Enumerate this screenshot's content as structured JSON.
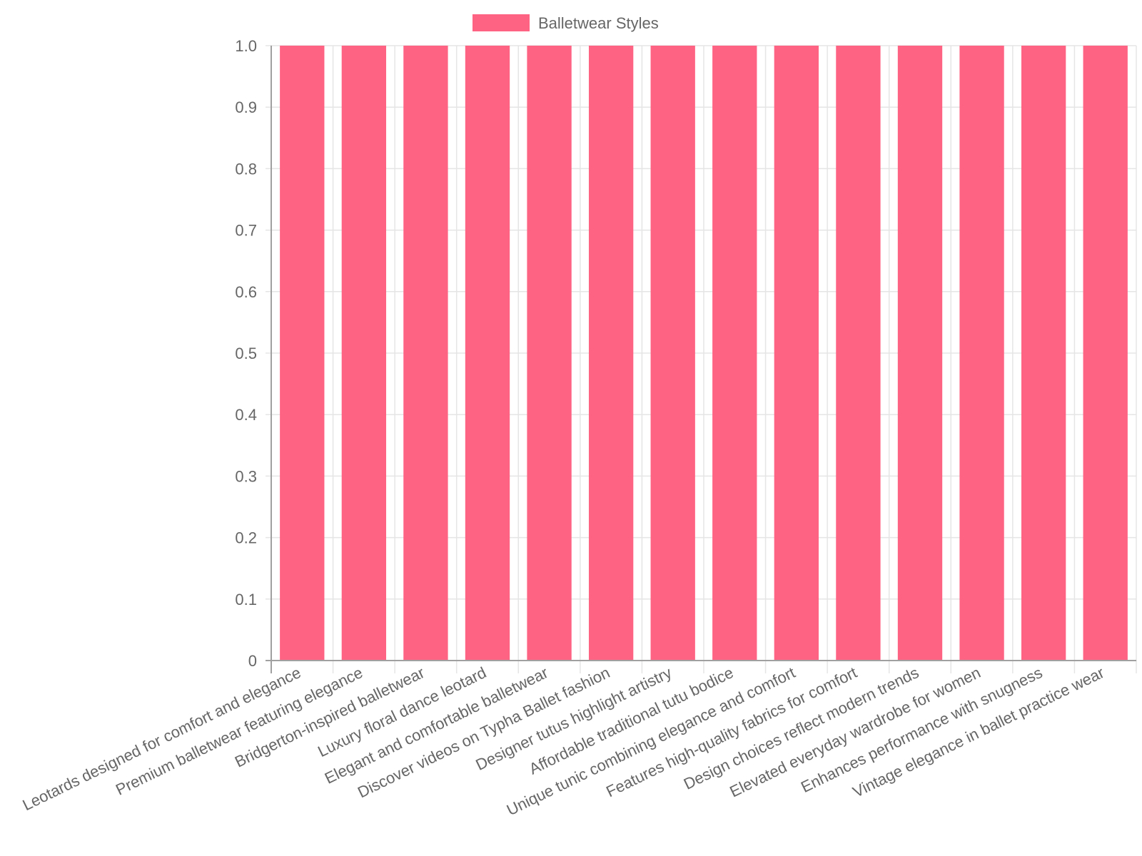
{
  "chart_data": {
    "type": "bar",
    "categories": [
      "Leotards designed for comfort and elegance",
      "Premium balletwear featuring elegance",
      "Bridgerton-inspired balletwear",
      "Luxury floral dance leotard",
      "Elegant and comfortable balletwear",
      "Discover videos on Typha Ballet fashion",
      "Designer tutus highlight artistry",
      "Affordable traditional tutu bodice",
      "Unique tunic combining elegance and comfort",
      "Features high-quality fabrics for comfort",
      "Design choices reflect modern trends",
      "Elevated everyday wardrobe for women",
      "Enhances performance with snugness",
      "Vintage elegance in ballet practice wear"
    ],
    "series": [
      {
        "name": "Balletwear Styles",
        "values": [
          1,
          1,
          1,
          1,
          1,
          1,
          1,
          1,
          1,
          1,
          1,
          1,
          1,
          1
        ],
        "color": "#ff6384"
      }
    ],
    "ylim": [
      0,
      1.0
    ],
    "y_ticks": [
      "0",
      "0.1",
      "0.2",
      "0.3",
      "0.4",
      "0.5",
      "0.6",
      "0.7",
      "0.8",
      "0.9",
      "1.0"
    ],
    "grid": true,
    "legend_position": "top",
    "title": "",
    "xlabel": "",
    "ylabel": ""
  },
  "colors": {
    "grid": "#e5e5e5",
    "axis": "#a0a0a0",
    "text": "#666666"
  }
}
